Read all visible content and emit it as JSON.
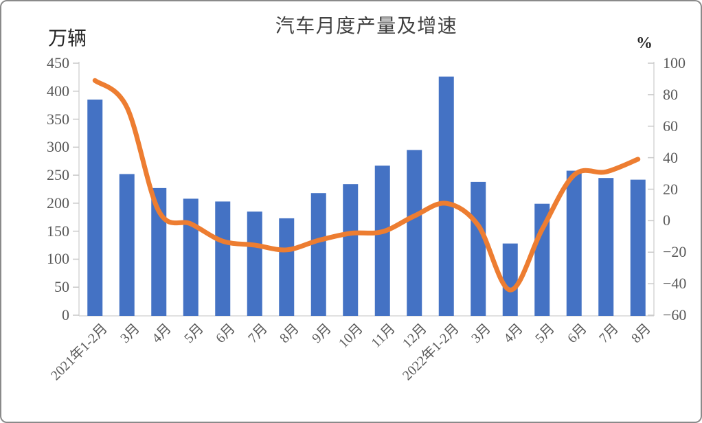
{
  "chart_data": {
    "type": "bar",
    "title": "汽车月度产量及增速",
    "categories": [
      "2021年1-2月",
      "3月",
      "4月",
      "5月",
      "6月",
      "7月",
      "8月",
      "9月",
      "10月",
      "11月",
      "12月",
      "2022年1-2月",
      "3月",
      "4月",
      "5月",
      "6月",
      "7月",
      "8月"
    ],
    "series": [
      {
        "name": "产量",
        "type": "bar",
        "yaxis": "left",
        "color": "#4472C4",
        "values": [
          385,
          252,
          227,
          208,
          203,
          185,
          173,
          218,
          234,
          267,
          295,
          426,
          238,
          128,
          199,
          258,
          245,
          242
        ]
      },
      {
        "name": "增速",
        "type": "line",
        "yaxis": "right",
        "color": "#ED7D31",
        "values": [
          89,
          72,
          6,
          -2,
          -13,
          -15.5,
          -18.5,
          -12.5,
          -8,
          -7,
          3,
          11,
          -3,
          -44,
          -5.5,
          29,
          31,
          39
        ]
      }
    ],
    "left_axis": {
      "label": "万辆",
      "min": 0,
      "max": 450,
      "step": 50,
      "tick_labels": [
        "0",
        "50",
        "100",
        "150",
        "200",
        "250",
        "300",
        "350",
        "400",
        "450"
      ]
    },
    "right_axis": {
      "label": "%",
      "min": -60,
      "max": 100,
      "step": 20,
      "tick_labels": [
        "-60",
        "-40",
        "-20",
        "0",
        "20",
        "40",
        "60",
        "80",
        "100"
      ]
    },
    "grid": false,
    "legend": "none",
    "x_tick_rotation": -45
  },
  "colors": {
    "bar": "#4472C4",
    "line": "#ED7D31",
    "axis_line": "#D6D6D6",
    "tick_mark": "#C9C9C9",
    "tick_label": "#595959",
    "title": "#404040"
  }
}
